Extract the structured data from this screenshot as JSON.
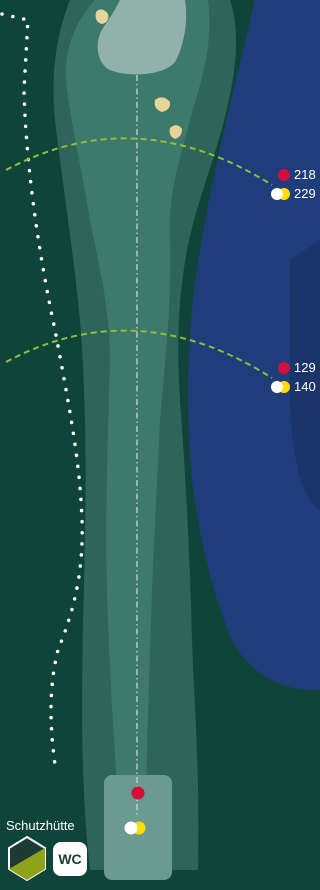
{
  "colors": {
    "rough": "#0f4538",
    "semi_rough": "#2d6659",
    "fairway": "#3e7a6c",
    "green": "#92b1aa",
    "water": "#1f3d7a",
    "water_deep": "#1b3469",
    "bunker": "#e5d59a",
    "marker_line": "#8fbf3a",
    "tee_red": "#d0103a",
    "tee_yellow": "#ffdd00",
    "tee_white": "#ffffff"
  },
  "distances": [
    {
      "red": "218",
      "white_yellow": "229"
    },
    {
      "red": "129",
      "white_yellow": "140"
    }
  ],
  "legend": {
    "shelter_label": "Schutzhütte",
    "shelter_icon": "shelter-hexagon-icon",
    "wc_label": "WC"
  }
}
